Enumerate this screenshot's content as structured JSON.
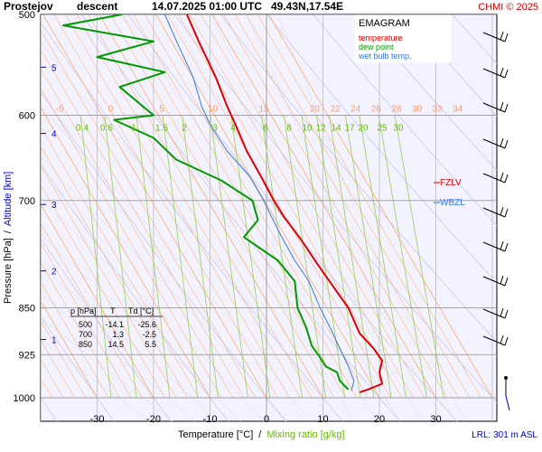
{
  "header": {
    "station": "Prostejov",
    "mode": "descent",
    "datetime": "14.07.2025 01:00 UTC",
    "coords": "49.43N,17.54E",
    "copyright": "CHMI © 2025"
  },
  "legend": {
    "title": "EMAGRAM",
    "items": [
      {
        "label": "temperature",
        "color": "#dd0000"
      },
      {
        "label": "dew point",
        "color": "#009900"
      },
      {
        "label": "wet bulb temp.",
        "color": "#3377dd"
      }
    ]
  },
  "levels": [
    {
      "label": "FZLV",
      "color": "#dd0000"
    },
    {
      "label": "WBZL",
      "color": "#3377dd"
    }
  ],
  "lrl_text": "LRL: 301 m ASL",
  "table": {
    "headers": [
      "p [hPa]",
      "T",
      "Td [°C]"
    ],
    "rows": [
      [
        "500",
        "-14.1",
        "-25.6"
      ],
      [
        "700",
        "1.3",
        "-2.5"
      ],
      [
        "850",
        "14.5",
        "5.5"
      ]
    ]
  },
  "chart_data": {
    "type": "line",
    "title": "",
    "xlabel": "Temperature [°C]",
    "xlabel_sep": "/",
    "xlabel2": "Mixing ratio [g/kg]",
    "ylabel": "Pressure [hPa]",
    "ylabel_sep": "/",
    "ylabel2": "Altitude [km]",
    "xlim": [
      -40,
      40
    ],
    "ylim": [
      1000,
      500
    ],
    "yscale": "log",
    "x_ticks": [
      -30,
      -20,
      -10,
      0,
      10,
      20,
      30
    ],
    "y_ticks": [
      500,
      600,
      700,
      850,
      925,
      1000
    ],
    "altitude_ticks": [
      {
        "km": "1",
        "p": 900
      },
      {
        "km": "2",
        "p": 795
      },
      {
        "km": "3",
        "p": 705
      },
      {
        "km": "4",
        "p": 620
      },
      {
        "km": "5",
        "p": 550
      }
    ],
    "isotherm_labels": [
      {
        "t": "-5",
        "x": -5
      },
      {
        "t": "0",
        "x": 0
      },
      {
        "t": "5",
        "x": 5
      },
      {
        "t": "10",
        "x": 10
      },
      {
        "t": "15",
        "x": 15
      },
      {
        "t": "20",
        "x": 20
      },
      {
        "t": "22",
        "x": 22
      },
      {
        "t": "24",
        "x": 24
      },
      {
        "t": "26",
        "x": 26
      },
      {
        "t": "28",
        "x": 28
      },
      {
        "t": "30",
        "x": 30
      },
      {
        "t": "32",
        "x": 32
      },
      {
        "t": "34",
        "x": 34
      }
    ],
    "mixing_ratio_labels": [
      "0.4",
      "0.6",
      "1",
      "1.5",
      "2",
      "3",
      "4",
      "6",
      "8",
      "10",
      "12",
      "14",
      "17",
      "20",
      "25",
      "30"
    ],
    "series": [
      {
        "name": "temperature",
        "color": "#dd0000",
        "points": [
          {
            "t": 16.5,
            "p": 990
          },
          {
            "t": 18.0,
            "p": 985
          },
          {
            "t": 20.5,
            "p": 975
          },
          {
            "t": 20.0,
            "p": 955
          },
          {
            "t": 20.5,
            "p": 935
          },
          {
            "t": 19.0,
            "p": 915
          },
          {
            "t": 16.5,
            "p": 890
          },
          {
            "t": 14.5,
            "p": 850
          },
          {
            "t": 12.0,
            "p": 820
          },
          {
            "t": 9.0,
            "p": 785
          },
          {
            "t": 6.0,
            "p": 750
          },
          {
            "t": 3.0,
            "p": 720
          },
          {
            "t": 1.3,
            "p": 700
          },
          {
            "t": -1.0,
            "p": 670
          },
          {
            "t": -3.5,
            "p": 640
          },
          {
            "t": -5.5,
            "p": 610
          },
          {
            "t": -7.0,
            "p": 590
          },
          {
            "t": -9.0,
            "p": 560
          },
          {
            "t": -12.0,
            "p": 525
          },
          {
            "t": -14.1,
            "p": 500
          }
        ]
      },
      {
        "name": "dew point",
        "color": "#009900",
        "points": [
          {
            "t": 14.5,
            "p": 985
          },
          {
            "t": 13.0,
            "p": 970
          },
          {
            "t": 12.5,
            "p": 955
          },
          {
            "t": 10.5,
            "p": 945
          },
          {
            "t": 9.5,
            "p": 930
          },
          {
            "t": 8.0,
            "p": 910
          },
          {
            "t": 7.0,
            "p": 880
          },
          {
            "t": 5.5,
            "p": 850
          },
          {
            "t": 5.0,
            "p": 810
          },
          {
            "t": 2.0,
            "p": 780
          },
          {
            "t": -4.0,
            "p": 748
          },
          {
            "t": -1.5,
            "p": 725
          },
          {
            "t": -2.5,
            "p": 700
          },
          {
            "t": -8.0,
            "p": 675
          },
          {
            "t": -16.0,
            "p": 650
          },
          {
            "t": -20.0,
            "p": 625
          },
          {
            "t": -27.0,
            "p": 605
          },
          {
            "t": -20.0,
            "p": 600
          },
          {
            "t": -26.0,
            "p": 570
          },
          {
            "t": -18.0,
            "p": 555
          },
          {
            "t": -30.0,
            "p": 540
          },
          {
            "t": -20.0,
            "p": 525
          },
          {
            "t": -36.0,
            "p": 510
          },
          {
            "t": -25.6,
            "p": 500
          }
        ]
      },
      {
        "name": "wet bulb temp.",
        "color": "#3377dd",
        "points": [
          {
            "t": 15.0,
            "p": 988
          },
          {
            "t": 15.5,
            "p": 970
          },
          {
            "t": 14.5,
            "p": 945
          },
          {
            "t": 13.0,
            "p": 915
          },
          {
            "t": 11.5,
            "p": 885
          },
          {
            "t": 9.5,
            "p": 850
          },
          {
            "t": 7.5,
            "p": 810
          },
          {
            "t": 5.0,
            "p": 780
          },
          {
            "t": 2.5,
            "p": 745
          },
          {
            "t": 0.5,
            "p": 715
          },
          {
            "t": -0.5,
            "p": 700
          },
          {
            "t": -3.0,
            "p": 670
          },
          {
            "t": -7.0,
            "p": 640
          },
          {
            "t": -10.0,
            "p": 610
          },
          {
            "t": -11.5,
            "p": 590
          },
          {
            "t": -13.0,
            "p": 560
          },
          {
            "t": -15.5,
            "p": 530
          },
          {
            "t": -18.0,
            "p": 500
          }
        ]
      }
    ]
  }
}
